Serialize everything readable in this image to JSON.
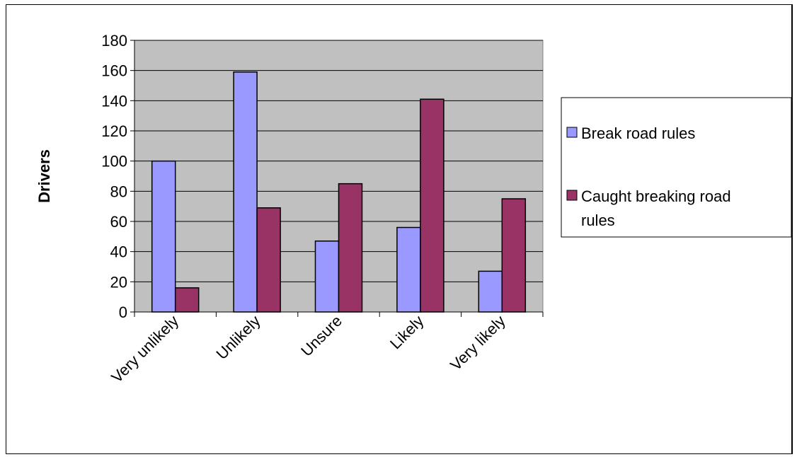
{
  "chart_data": {
    "type": "bar",
    "categories": [
      "Very unlikely",
      "Unlikely",
      "Unsure",
      "Likely",
      "Very likely"
    ],
    "series": [
      {
        "name": "Break road rules",
        "color": "#9999ff",
        "values": [
          100,
          159,
          47,
          56,
          27
        ]
      },
      {
        "name": "Caught breaking road rules",
        "color": "#993366",
        "values": [
          16,
          69,
          85,
          141,
          75
        ]
      }
    ],
    "legend_lines": [
      [
        "Break road rules"
      ],
      [
        "Caught breaking road",
        "rules"
      ]
    ],
    "title": "",
    "xlabel": "",
    "ylabel": "Drivers",
    "ylim": [
      0,
      180
    ],
    "yticks": [
      0,
      20,
      40,
      60,
      80,
      100,
      120,
      140,
      160,
      180
    ],
    "plot_background": "#c0c0c0",
    "grid": true,
    "legend_position": "right"
  }
}
